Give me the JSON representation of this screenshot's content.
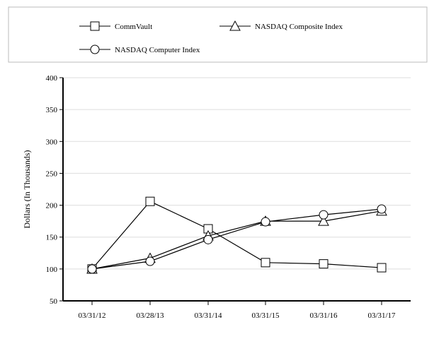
{
  "chart_data": {
    "type": "line",
    "title": "",
    "xlabel": "",
    "ylabel": "Dollars (In Thousands)",
    "categories": [
      "03/31/12",
      "03/28/13",
      "03/31/14",
      "03/31/15",
      "03/31/16",
      "03/31/17"
    ],
    "ylim": [
      50,
      400
    ],
    "yticks": [
      50,
      100,
      150,
      200,
      250,
      300,
      350,
      400
    ],
    "grid": true,
    "legend_position": "top",
    "series": [
      {
        "name": "CommVault",
        "marker": "square",
        "values": [
          100,
          206,
          163,
          110,
          108,
          102
        ]
      },
      {
        "name": "NASDAQ Composite Index",
        "marker": "triangle",
        "values": [
          100,
          117,
          152,
          175,
          175,
          191
        ]
      },
      {
        "name": "NASDAQ Computer Index",
        "marker": "circle",
        "values": [
          100,
          112,
          146,
          174,
          185,
          194
        ]
      }
    ]
  }
}
